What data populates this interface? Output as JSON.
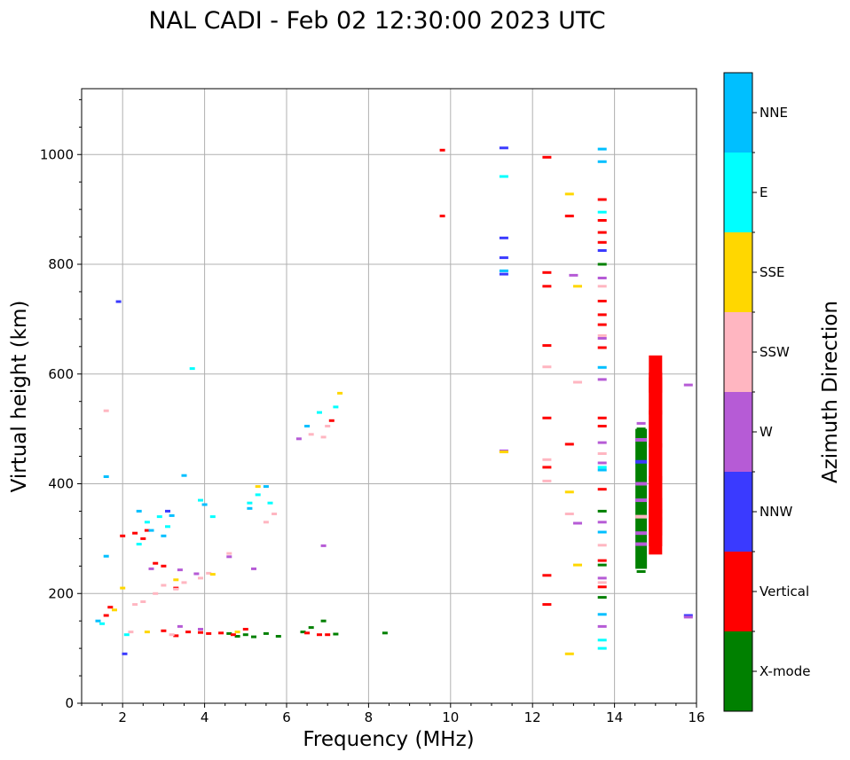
{
  "chart_data": {
    "type": "scatter",
    "title": "NAL CADI - Feb 02 12:30:00 2023 UTC",
    "xlabel": "Frequency (MHz)",
    "ylabel": "Virtual height (km)",
    "xlim": [
      1,
      16
    ],
    "ylim": [
      0,
      1120
    ],
    "xticks": [
      2,
      4,
      6,
      8,
      10,
      12,
      14,
      16
    ],
    "yticks": [
      0,
      200,
      400,
      600,
      800,
      1000
    ],
    "grid": true,
    "colorbar": {
      "label": "Azimuth Direction",
      "categories": [
        {
          "name": "X-mode",
          "color": "#008000"
        },
        {
          "name": "Vertical",
          "color": "#ff0000"
        },
        {
          "name": "NNW",
          "color": "#3a3aff"
        },
        {
          "name": "W",
          "color": "#b65bd6"
        },
        {
          "name": "SSW",
          "color": "#ffb6c1"
        },
        {
          "name": "SSE",
          "color": "#ffd700"
        },
        {
          "name": "E",
          "color": "#00ffff"
        },
        {
          "name": "NNE",
          "color": "#00bfff"
        }
      ]
    },
    "series": [
      {
        "name": "X-mode",
        "points": [
          [
            4.6,
            127
          ],
          [
            4.8,
            122
          ],
          [
            5.0,
            125
          ],
          [
            5.2,
            121
          ],
          [
            5.5,
            127
          ],
          [
            5.8,
            122
          ],
          [
            6.4,
            130
          ],
          [
            6.6,
            138
          ],
          [
            6.9,
            150
          ],
          [
            7.2,
            126
          ],
          [
            8.4,
            128
          ],
          [
            13.7,
            252
          ],
          [
            13.7,
            350
          ],
          [
            13.7,
            800
          ],
          [
            13.7,
            193
          ],
          [
            14.65,
            240
          ],
          [
            14.65,
            255
          ],
          [
            14.65,
            270
          ],
          [
            14.65,
            280
          ],
          [
            14.65,
            295
          ],
          [
            14.65,
            310
          ],
          [
            14.65,
            330
          ],
          [
            14.65,
            350
          ],
          [
            14.65,
            380
          ],
          [
            14.65,
            420
          ],
          [
            14.65,
            460
          ],
          [
            14.65,
            500
          ]
        ]
      },
      {
        "name": "Vertical",
        "points": [
          [
            1.6,
            160
          ],
          [
            1.7,
            175
          ],
          [
            2.0,
            305
          ],
          [
            2.3,
            310
          ],
          [
            2.5,
            300
          ],
          [
            2.6,
            315
          ],
          [
            2.8,
            255
          ],
          [
            3.0,
            250
          ],
          [
            3.3,
            210
          ],
          [
            3.0,
            132
          ],
          [
            3.3,
            123
          ],
          [
            3.6,
            130
          ],
          [
            3.9,
            129
          ],
          [
            4.1,
            127
          ],
          [
            4.4,
            128
          ],
          [
            4.7,
            125
          ],
          [
            5.0,
            135
          ],
          [
            6.5,
            128
          ],
          [
            6.8,
            125
          ],
          [
            7.0,
            125
          ],
          [
            7.1,
            515
          ],
          [
            9.8,
            1008
          ],
          [
            9.8,
            888
          ],
          [
            12.35,
            995
          ],
          [
            12.35,
            785
          ],
          [
            12.35,
            760
          ],
          [
            12.35,
            652
          ],
          [
            12.35,
            520
          ],
          [
            12.35,
            430
          ],
          [
            12.35,
            233
          ],
          [
            12.35,
            180
          ],
          [
            12.9,
            888
          ],
          [
            12.9,
            472
          ],
          [
            13.7,
            918
          ],
          [
            13.7,
            880
          ],
          [
            13.7,
            858
          ],
          [
            13.7,
            840
          ],
          [
            13.7,
            733
          ],
          [
            13.7,
            708
          ],
          [
            13.7,
            690
          ],
          [
            13.7,
            648
          ],
          [
            13.7,
            520
          ],
          [
            13.7,
            505
          ],
          [
            13.7,
            390
          ],
          [
            13.7,
            260
          ],
          [
            13.7,
            212
          ],
          [
            15.0,
            600
          ],
          [
            15.0,
            560
          ],
          [
            15.0,
            500
          ],
          [
            15.0,
            440
          ],
          [
            15.0,
            380
          ],
          [
            15.0,
            340
          ],
          [
            15.0,
            320
          ],
          [
            15.0,
            305
          ]
        ]
      },
      {
        "name": "NNW",
        "points": [
          [
            1.9,
            732
          ],
          [
            3.1,
            350
          ],
          [
            11.3,
            1012
          ],
          [
            11.3,
            848
          ],
          [
            11.3,
            812
          ],
          [
            11.3,
            782
          ],
          [
            13.7,
            825
          ],
          [
            14.65,
            290
          ],
          [
            15.8,
            160
          ],
          [
            2.05,
            90
          ]
        ]
      },
      {
        "name": "W",
        "points": [
          [
            2.7,
            245
          ],
          [
            3.4,
            243
          ],
          [
            3.8,
            236
          ],
          [
            3.4,
            140
          ],
          [
            3.9,
            135
          ],
          [
            4.6,
            267
          ],
          [
            5.2,
            245
          ],
          [
            6.3,
            482
          ],
          [
            6.9,
            287
          ],
          [
            11.3,
            460
          ],
          [
            13.0,
            780
          ],
          [
            13.1,
            328
          ],
          [
            13.7,
            775
          ],
          [
            13.7,
            665
          ],
          [
            13.7,
            590
          ],
          [
            13.7,
            475
          ],
          [
            13.7,
            438
          ],
          [
            13.7,
            330
          ],
          [
            13.7,
            228
          ],
          [
            13.7,
            140
          ],
          [
            14.65,
            300
          ],
          [
            14.65,
            320
          ],
          [
            14.65,
            340
          ],
          [
            14.65,
            370
          ],
          [
            14.65,
            400
          ],
          [
            14.65,
            440
          ],
          [
            14.65,
            480
          ],
          [
            14.65,
            510
          ],
          [
            15.8,
            580
          ],
          [
            15.8,
            157
          ]
        ]
      },
      {
        "name": "SSW",
        "points": [
          [
            1.6,
            533
          ],
          [
            2.3,
            180
          ],
          [
            2.5,
            185
          ],
          [
            2.8,
            200
          ],
          [
            3.0,
            215
          ],
          [
            3.3,
            208
          ],
          [
            3.5,
            220
          ],
          [
            3.9,
            228
          ],
          [
            4.1,
            237
          ],
          [
            4.6,
            273
          ],
          [
            5.5,
            330
          ],
          [
            5.7,
            345
          ],
          [
            6.6,
            490
          ],
          [
            6.9,
            485
          ],
          [
            7.0,
            505
          ],
          [
            12.35,
            613
          ],
          [
            12.35,
            444
          ],
          [
            12.35,
            405
          ],
          [
            12.9,
            345
          ],
          [
            13.1,
            585
          ],
          [
            13.7,
            760
          ],
          [
            13.7,
            670
          ],
          [
            13.7,
            455
          ],
          [
            13.7,
            288
          ],
          [
            13.7,
            220
          ],
          [
            2.2,
            130
          ],
          [
            3.2,
            125
          ]
        ]
      },
      {
        "name": "SSE",
        "points": [
          [
            1.8,
            170
          ],
          [
            2.0,
            210
          ],
          [
            3.3,
            225
          ],
          [
            4.2,
            235
          ],
          [
            5.3,
            395
          ],
          [
            7.3,
            565
          ],
          [
            11.3,
            458
          ],
          [
            12.9,
            928
          ],
          [
            12.9,
            385
          ],
          [
            12.9,
            90
          ],
          [
            13.1,
            760
          ],
          [
            13.1,
            252
          ],
          [
            2.6,
            130
          ],
          [
            4.8,
            130
          ]
        ]
      },
      {
        "name": "E",
        "points": [
          [
            1.5,
            145
          ],
          [
            2.1,
            125
          ],
          [
            2.4,
            290
          ],
          [
            2.6,
            330
          ],
          [
            2.9,
            340
          ],
          [
            3.1,
            322
          ],
          [
            3.7,
            610
          ],
          [
            3.9,
            370
          ],
          [
            4.2,
            340
          ],
          [
            5.1,
            365
          ],
          [
            5.3,
            380
          ],
          [
            5.6,
            365
          ],
          [
            6.8,
            530
          ],
          [
            7.2,
            540
          ],
          [
            11.3,
            960
          ],
          [
            13.7,
            895
          ],
          [
            13.7,
            430
          ],
          [
            13.7,
            115
          ],
          [
            13.7,
            100
          ]
        ]
      },
      {
        "name": "NNE",
        "points": [
          [
            1.6,
            413
          ],
          [
            1.6,
            268
          ],
          [
            2.4,
            350
          ],
          [
            2.7,
            315
          ],
          [
            3.0,
            305
          ],
          [
            3.2,
            342
          ],
          [
            3.5,
            415
          ],
          [
            4.0,
            362
          ],
          [
            5.1,
            355
          ],
          [
            5.5,
            395
          ],
          [
            6.5,
            505
          ],
          [
            11.3,
            788
          ],
          [
            13.7,
            1010
          ],
          [
            13.7,
            987
          ],
          [
            13.7,
            612
          ],
          [
            13.7,
            425
          ],
          [
            13.7,
            312
          ],
          [
            13.7,
            162
          ],
          [
            1.4,
            150
          ]
        ]
      }
    ]
  }
}
